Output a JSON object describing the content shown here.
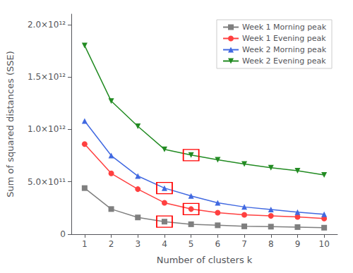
{
  "chart_data": {
    "type": "line",
    "x": [
      1,
      2,
      3,
      4,
      5,
      6,
      7,
      8,
      9,
      10
    ],
    "xlabel": "Number of clusters k",
    "ylabel": "Sum of squared distances (SSE)",
    "xlim": [
      0.5,
      10.5
    ],
    "xticks": [
      1,
      2,
      3,
      4,
      5,
      6,
      7,
      8,
      9,
      10
    ],
    "ylim": [
      0,
      2100000000000.0
    ],
    "yticks": [
      0,
      {
        "value": 500000000000.0,
        "label": "5.0×10¹¹"
      },
      {
        "value": 1000000000000.0,
        "label": "1.0×10¹²"
      },
      {
        "value": 1500000000000.0,
        "label": "1.5×10¹²"
      },
      {
        "value": 2000000000000.0,
        "label": "2.0×10¹²"
      }
    ],
    "grid": false,
    "legend": "upper right",
    "series": [
      {
        "name": "Week 1 Morning peak",
        "color": "#7f7f7f",
        "marker": "square",
        "values": [
          440000000000.0,
          240000000000.0,
          160000000000.0,
          120000000000.0,
          95000000000.0,
          85000000000.0,
          75000000000.0,
          72000000000.0,
          68000000000.0,
          62000000000.0
        ],
        "highlights": [
          4
        ]
      },
      {
        "name": "Week 1 Evening peak",
        "color": "#ff4040",
        "marker": "circle",
        "values": [
          860000000000.0,
          580000000000.0,
          430000000000.0,
          300000000000.0,
          240000000000.0,
          205000000000.0,
          185000000000.0,
          175000000000.0,
          165000000000.0,
          150000000000.0
        ],
        "highlights": [
          5
        ]
      },
      {
        "name": "Week 2 Morning peak",
        "color": "#4169e1",
        "marker": "triangle",
        "values": [
          1080000000000.0,
          750000000000.0,
          555000000000.0,
          440000000000.0,
          365000000000.0,
          300000000000.0,
          260000000000.0,
          235000000000.0,
          210000000000.0,
          190000000000.0
        ],
        "highlights": [
          4
        ]
      },
      {
        "name": "Week 2 Evening peak",
        "color": "#228b22",
        "marker": "triangle_down",
        "values": [
          1800000000000.0,
          1270000000000.0,
          1030000000000.0,
          810000000000.0,
          755000000000.0,
          710000000000.0,
          670000000000.0,
          635000000000.0,
          605000000000.0,
          565000000000.0
        ],
        "highlights": [
          5
        ]
      }
    ]
  }
}
